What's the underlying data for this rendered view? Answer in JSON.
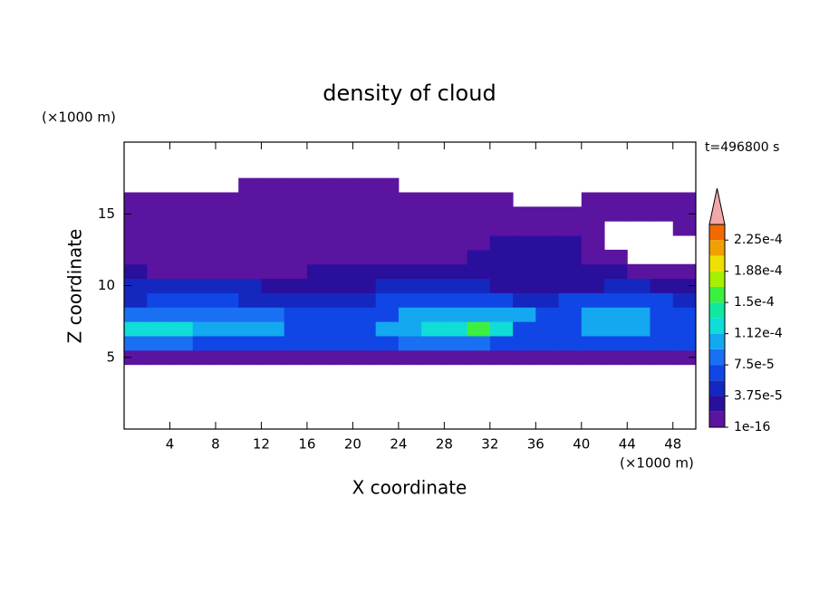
{
  "chart_data": {
    "type": "contour",
    "title": "density of cloud",
    "x_label": "X coordinate",
    "y_label": "Z coordinate",
    "x_unit": "(×1000 m)",
    "y_unit": "(×1000 m)",
    "annotation": "t=496800 s",
    "xlim": [
      0,
      50
    ],
    "ylim": [
      0,
      20
    ],
    "xticks": [
      4,
      8,
      12,
      16,
      20,
      24,
      28,
      32,
      36,
      40,
      44,
      48
    ],
    "yticks": [
      5,
      10,
      15
    ],
    "field": {
      "x": [
        1,
        3,
        5,
        7,
        9,
        11,
        13,
        15,
        17,
        19,
        21,
        23,
        25,
        27,
        29,
        31,
        33,
        35,
        37,
        39,
        41,
        43,
        45,
        47,
        49
      ],
      "z": [
        5,
        6,
        7,
        8,
        9,
        10,
        11,
        12,
        13,
        14,
        15,
        16,
        17
      ],
      "values": [
        [
          1e-05,
          1e-05,
          1e-05,
          1e-05,
          1e-05,
          1e-05,
          1e-05,
          1e-05,
          1e-05,
          1e-05,
          1e-05,
          1e-05,
          1e-05,
          1e-05,
          1e-05,
          1e-05,
          1e-05,
          1e-05,
          1e-05,
          1e-05,
          1e-05,
          1e-05,
          1e-05,
          1e-05,
          1e-05
        ],
        [
          9e-05,
          9e-05,
          9e-05,
          7e-05,
          7e-05,
          7e-05,
          7e-05,
          7e-05,
          7e-05,
          7e-05,
          7e-05,
          7e-05,
          9e-05,
          9e-05,
          9e-05,
          9e-05,
          7e-05,
          7e-05,
          7e-05,
          7e-05,
          7e-05,
          7e-05,
          7e-05,
          7e-05,
          7e-05
        ],
        [
          0.00013,
          0.00013,
          0.00013,
          0.00011,
          0.00011,
          0.00011,
          0.00011,
          7e-05,
          7e-05,
          7e-05,
          7e-05,
          0.00011,
          0.00011,
          0.00013,
          0.00013,
          0.00016,
          0.00013,
          7e-05,
          7e-05,
          7e-05,
          0.00011,
          0.00011,
          0.00011,
          7e-05,
          7e-05
        ],
        [
          9e-05,
          9e-05,
          9e-05,
          9e-05,
          9e-05,
          9e-05,
          9e-05,
          7e-05,
          7e-05,
          7e-05,
          7e-05,
          7e-05,
          0.00011,
          0.00011,
          0.00011,
          0.00011,
          0.00011,
          0.00011,
          7e-05,
          7e-05,
          0.00011,
          0.00011,
          0.00011,
          7e-05,
          7e-05
        ],
        [
          5e-05,
          7e-05,
          7e-05,
          7e-05,
          7e-05,
          5e-05,
          5e-05,
          5e-05,
          5e-05,
          5e-05,
          5e-05,
          7e-05,
          7e-05,
          7e-05,
          7e-05,
          7e-05,
          7e-05,
          5e-05,
          5e-05,
          7e-05,
          7e-05,
          7e-05,
          7e-05,
          7e-05,
          5e-05
        ],
        [
          5e-05,
          5e-05,
          5e-05,
          5e-05,
          5e-05,
          5e-05,
          3e-05,
          3e-05,
          3e-05,
          3e-05,
          3e-05,
          5e-05,
          5e-05,
          5e-05,
          5e-05,
          5e-05,
          3e-05,
          3e-05,
          3e-05,
          3e-05,
          3e-05,
          5e-05,
          5e-05,
          3e-05,
          3e-05
        ],
        [
          3e-05,
          1e-05,
          1e-05,
          1e-05,
          1e-05,
          1e-05,
          1e-05,
          1e-05,
          3e-05,
          3e-05,
          3e-05,
          3e-05,
          3e-05,
          3e-05,
          3e-05,
          3e-05,
          3e-05,
          3e-05,
          3e-05,
          3e-05,
          3e-05,
          3e-05,
          1e-05,
          1e-05,
          1e-05
        ],
        [
          1e-05,
          1e-05,
          1e-05,
          1e-05,
          1e-05,
          1e-05,
          1e-05,
          1e-05,
          1e-05,
          1e-05,
          1e-05,
          1e-05,
          1e-05,
          1e-05,
          1e-05,
          3e-05,
          3e-05,
          3e-05,
          3e-05,
          3e-05,
          1e-05,
          1e-05,
          null,
          null,
          null
        ],
        [
          1e-05,
          1e-05,
          1e-05,
          1e-05,
          1e-05,
          1e-05,
          1e-05,
          1e-05,
          1e-05,
          1e-05,
          1e-05,
          1e-05,
          1e-05,
          1e-05,
          1e-05,
          1e-05,
          3e-05,
          3e-05,
          3e-05,
          3e-05,
          1e-05,
          null,
          null,
          null,
          null
        ],
        [
          1e-05,
          1e-05,
          1e-05,
          1e-05,
          1e-05,
          1e-05,
          1e-05,
          1e-05,
          1e-05,
          1e-05,
          1e-05,
          1e-05,
          1e-05,
          1e-05,
          1e-05,
          1e-05,
          1e-05,
          1e-05,
          1e-05,
          1e-05,
          1e-05,
          null,
          null,
          null,
          1e-05
        ],
        [
          1e-05,
          1e-05,
          1e-05,
          1e-05,
          1e-05,
          1e-05,
          1e-05,
          1e-05,
          1e-05,
          1e-05,
          1e-05,
          1e-05,
          1e-05,
          1e-05,
          1e-05,
          1e-05,
          1e-05,
          1e-05,
          1e-05,
          1e-05,
          1e-05,
          1e-05,
          1e-05,
          1e-05,
          1e-05
        ],
        [
          1e-05,
          1e-05,
          1e-05,
          1e-05,
          1e-05,
          1e-05,
          1e-05,
          1e-05,
          1e-05,
          1e-05,
          1e-05,
          1e-05,
          1e-05,
          1e-05,
          1e-05,
          1e-05,
          1e-05,
          null,
          null,
          null,
          1e-05,
          1e-05,
          1e-05,
          1e-05,
          1e-05
        ],
        [
          null,
          null,
          null,
          null,
          null,
          1e-05,
          1e-05,
          1e-05,
          1e-05,
          1e-05,
          1e-05,
          1e-05,
          null,
          null,
          null,
          null,
          null,
          null,
          null,
          null,
          null,
          null,
          null,
          null,
          null
        ]
      ]
    },
    "levels": [
      {
        "value": 1e-16,
        "label": "1e-16"
      },
      1.875e-05,
      {
        "value": 3.75e-05,
        "label": "3.75e-5"
      },
      5.625e-05,
      {
        "value": 7.5e-05,
        "label": "7.5e-5"
      },
      9.375e-05,
      {
        "value": 0.0001125,
        "label": "1.12e-4"
      },
      0.00013125,
      {
        "value": 0.00015,
        "label": "1.5e-4"
      },
      0.00016875,
      {
        "value": 0.0001875,
        "label": "1.88e-4"
      },
      0.00020625,
      {
        "value": 0.000225,
        "label": "2.25e-4"
      },
      0.00024375
    ],
    "colors": [
      "#5a14a0",
      "#2a0f9c",
      "#1428c0",
      "#1046e6",
      "#1a70f2",
      "#14a8f0",
      "#10dcd8",
      "#10e8a0",
      "#3cf040",
      "#a8f000",
      "#f0e000",
      "#f0a000",
      "#f06a00"
    ],
    "extend_color": "#f0a8a8"
  }
}
